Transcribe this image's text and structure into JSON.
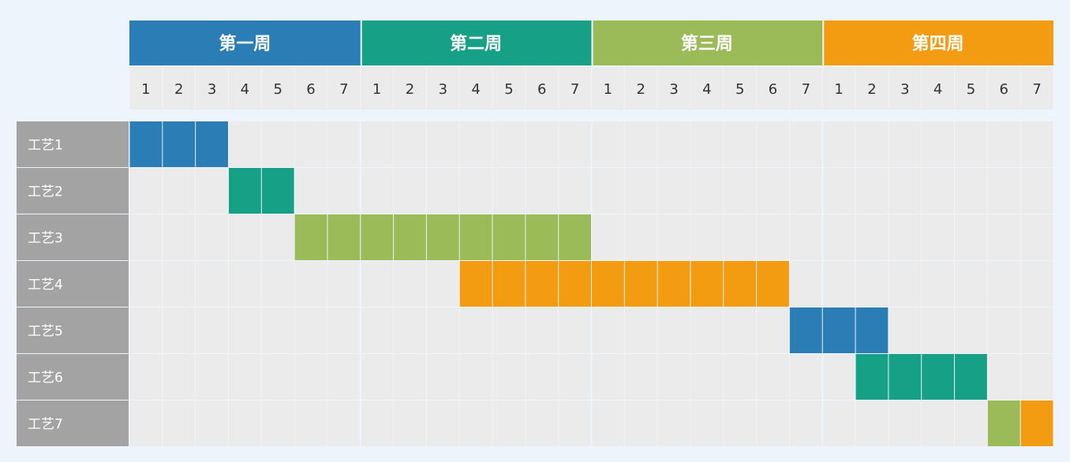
{
  "chart_data": {
    "type": "gantt",
    "weeks": [
      {
        "label": "第一周",
        "color": "#2a7db5",
        "days": [
          "1",
          "2",
          "3",
          "4",
          "5",
          "6",
          "7"
        ]
      },
      {
        "label": "第二周",
        "color": "#16a085",
        "days": [
          "1",
          "2",
          "3",
          "4",
          "5",
          "6",
          "7"
        ]
      },
      {
        "label": "第三周",
        "color": "#9bbb59",
        "days": [
          "1",
          "2",
          "3",
          "4",
          "5",
          "6",
          "7"
        ]
      },
      {
        "label": "第四周",
        "color": "#f39c12",
        "days": [
          "1",
          "2",
          "3",
          "4",
          "5",
          "6",
          "7"
        ]
      }
    ],
    "tasks": [
      {
        "name": "工艺1",
        "start_day": 1,
        "end_day": 3,
        "color": "#2a7db5"
      },
      {
        "name": "工艺2",
        "start_day": 4,
        "end_day": 5,
        "color": "#16a085"
      },
      {
        "name": "工艺3",
        "start_day": 6,
        "end_day": 14,
        "color": "#9bbb59"
      },
      {
        "name": "工艺4",
        "start_day": 11,
        "end_day": 20,
        "color": "#f39c12"
      },
      {
        "name": "工艺5",
        "start_day": 21,
        "end_day": 23,
        "color": "#2a7db5"
      },
      {
        "name": "工艺6",
        "start_day": 23,
        "end_day": 26,
        "color": "#16a085"
      },
      {
        "name": "工艺7",
        "start_day": 27,
        "end_day": 27,
        "color": "#9bbb59"
      },
      {
        "name": "工艺7",
        "start_day": 28,
        "end_day": 28,
        "color": "#f39c12"
      }
    ],
    "colors": {
      "cell": "#ebebeb",
      "task_label_bg": "#a3a3a3",
      "background": "#eef4fb"
    }
  }
}
